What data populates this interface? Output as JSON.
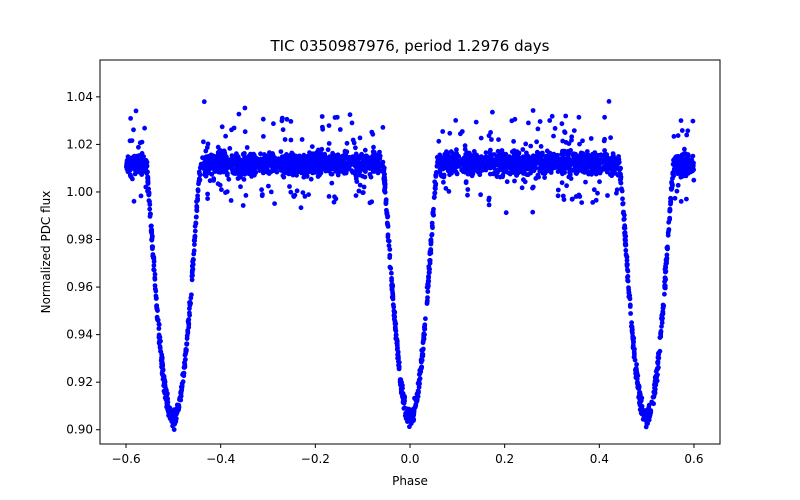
{
  "chart_data": {
    "type": "scatter",
    "title": "TIC 0350987976, period 1.2976 days",
    "xlabel": "Phase",
    "ylabel": "Normalized PDC flux",
    "xlim": [
      -0.655,
      0.655
    ],
    "ylim": [
      0.894,
      1.0555
    ],
    "x_ticks": [
      -0.6,
      -0.4,
      -0.2,
      0.0,
      0.2,
      0.4,
      0.6
    ],
    "x_tick_labels": [
      "−0.6",
      "−0.4",
      "−0.2",
      "0.0",
      "0.2",
      "0.4",
      "0.6"
    ],
    "y_ticks": [
      0.9,
      0.92,
      0.94,
      0.96,
      0.98,
      1.0,
      1.02,
      1.04
    ],
    "y_tick_labels": [
      "0.90",
      "0.92",
      "0.94",
      "0.96",
      "0.98",
      "1.00",
      "1.02",
      "1.04"
    ],
    "grid": false,
    "marker_color": "#0000ff",
    "period_days": 1.2976,
    "phase_range": [
      -0.6,
      0.6
    ],
    "eclipse_centers": [
      -0.5,
      0.0,
      0.5
    ],
    "out_of_eclipse_flux": 1.012,
    "eclipse_min_flux": 0.905,
    "eclipse_half_width": 0.058,
    "light_curve_profile": [
      [
        -0.6,
        1.012
      ],
      [
        -0.56,
        1.008
      ],
      [
        -0.54,
        0.99
      ],
      [
        -0.52,
        0.955
      ],
      [
        -0.5,
        0.905
      ],
      [
        -0.48,
        0.955
      ],
      [
        -0.46,
        0.99
      ],
      [
        -0.44,
        1.008
      ],
      [
        -0.4,
        1.012
      ],
      [
        -0.2,
        1.014
      ],
      [
        -0.06,
        1.012
      ],
      [
        -0.04,
        0.99
      ],
      [
        -0.02,
        0.955
      ],
      [
        0.0,
        0.905
      ],
      [
        0.02,
        0.955
      ],
      [
        0.04,
        0.99
      ],
      [
        0.06,
        1.008
      ],
      [
        0.2,
        1.014
      ],
      [
        0.44,
        1.008
      ],
      [
        0.46,
        0.99
      ],
      [
        0.48,
        0.955
      ],
      [
        0.5,
        0.905
      ],
      [
        0.52,
        0.955
      ],
      [
        0.54,
        0.99
      ],
      [
        0.56,
        1.008
      ],
      [
        0.6,
        1.012
      ]
    ]
  }
}
